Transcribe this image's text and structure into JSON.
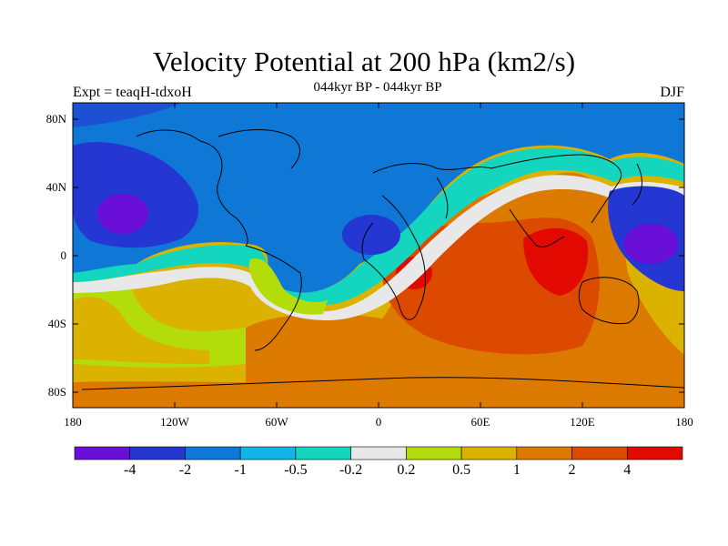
{
  "title": "Velocity Potential at 200 hPa (km2/s)",
  "subtitle": "044kyr BP - 044kyr BP",
  "left_label": "Expt = teaqH-tdxoH",
  "right_label": "DJF",
  "lat_ticks": [
    "80N",
    "40N",
    "0",
    "40S",
    "80S"
  ],
  "lon_ticks": [
    "180",
    "120W",
    "60W",
    "0",
    "60E",
    "120E",
    "180"
  ],
  "colorbar": {
    "colors": [
      "#6a0fd8",
      "#2437d2",
      "#0f78d6",
      "#10b6e6",
      "#14d6be",
      "#e8e8e8",
      "#b4dc0a",
      "#dcb200",
      "#dc7a00",
      "#dc4a00",
      "#e20a00"
    ],
    "labels": [
      "-4",
      "-2",
      "-1",
      "-0.5",
      "-0.2",
      "0.2",
      "0.5",
      "1",
      "2",
      "4"
    ]
  }
}
